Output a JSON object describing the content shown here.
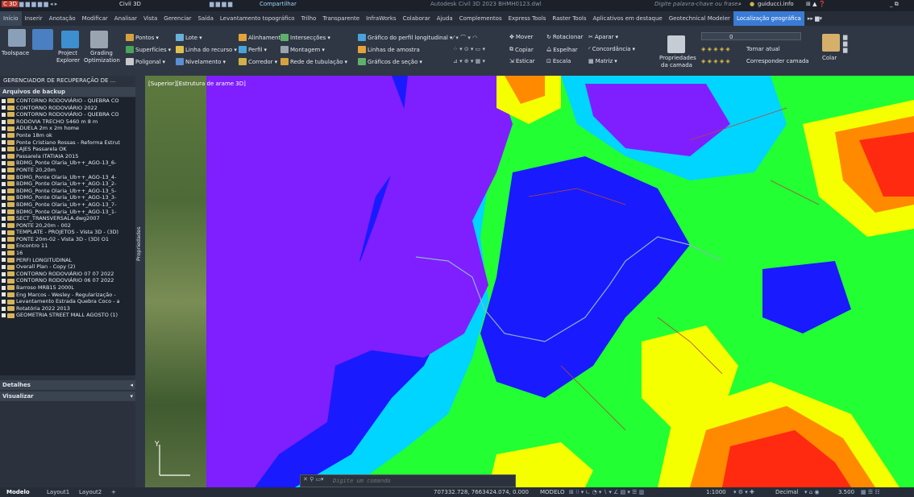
{
  "titlebar": {
    "app_badge": "C 3D",
    "file_menu": "Civil 3D",
    "share": "Compartilhar",
    "window_title": "Autodesk Civil 3D 2023   BHMH0123.dwl",
    "search_placeholder": "Digite palavra-chave ou frase",
    "user": "guiducci.info",
    "window_controls": "_ ⧉"
  },
  "tabs": [
    "Início",
    "Inserir",
    "Anotação",
    "Modificar",
    "Analisar",
    "Vista",
    "Gerenciar",
    "Saída",
    "Levantamento topográfico",
    "Trilho",
    "Transparente",
    "InfraWorks",
    "Colaborar",
    "Ajuda",
    "Complementos",
    "Express Tools",
    "Raster Tools",
    "Aplicativos em destaque",
    "Geotechnical Modeler",
    "Localização geográfica"
  ],
  "active_tab": "Localização geográfica",
  "ribbon": {
    "toolspace": "Toolspace",
    "project_explorer": [
      "Project",
      "Explorer"
    ],
    "grading_optimization": [
      "Grading",
      "Optimization"
    ],
    "col1": [
      "Pontos",
      "Superfícies",
      "Poligonal"
    ],
    "col2": [
      "Lote",
      "Linha do recurso",
      "Nivelamento"
    ],
    "col3": [
      "Alinhamento",
      "Perfil",
      "Corredor"
    ],
    "col4": [
      "Intersecções",
      "Montagem",
      "Rede de tubulação"
    ],
    "col5": [
      "Gráfico do perfil longitudinal",
      "Linhas de amostra",
      "Gráficos de seção"
    ],
    "modify": [
      "Mover",
      "Copiar",
      "Esticar",
      "Rotacionar",
      "Espelhar",
      "Escala",
      "Aparar",
      "Concordância",
      "Matriz"
    ],
    "layer_props": [
      "Propriedades",
      "da camada"
    ],
    "layer_value": "0",
    "tornar_atual": "Tornar atual",
    "corresponder": "Corresponder camada",
    "colar": "Colar"
  },
  "left_panel": {
    "title": "GERENCIADOR DE RECUPERAÇÃO DE ...",
    "section": "Arquivos de backup",
    "items": [
      "CONTORNO RODOVIÁRIO - QUEBRA CO",
      "CONTORNO RODOVIÁRIO 2022",
      "CONTORNO RODOVIÁRIO - QUEBRA CO",
      "RODOVIA TRECHO 5460 m 8 m",
      "ADUELA 2m x 2m home",
      "Ponte 18m ok",
      "Ponte Cristiano Rossas - Reforma Estrut",
      "LAJES Passarela OK",
      "Passarela ITATIAIA 2015",
      "BDMG_Ponte Olaria_Ub++_AGO-13_6-",
      "PONTE 20,20m",
      "BDMG_Ponte Olaria_Ub++_AGO-13_4-",
      "BDMG_Ponte Olaria_Ub++_AGO-13_2-",
      "BDMG_Ponte Olaria_Ub++_AGO-13_5-",
      "BDMG_Ponte Olaria_Ub++_AGO-13_3-",
      "BDMG_Ponte Olaria_Ub++_AGO-13_7-",
      "BDMG_Ponte Olaria_Ub++_AGO-13_1-",
      "SECT_TRANSVERSALA.dwg2007",
      "PONTE 20,20m - 002",
      "TEMPLATE - PROJETOS - Vista 3D - (3D)",
      "PONTE 20m-02 - Vista 3D - (3D) O1",
      "Encontro 11",
      "16",
      "PERFI LONGITUDINAL",
      "Overall Plan - Copy (2)",
      "CONTORNO RODOVIÁRIO 07 07 2022",
      "CONTORNO RODOVIÁRIO 06 07 2022",
      "Barroso MRB15 2000L",
      "Eng Marcos - Wesley - Regularização -",
      "Levantamento Estrada Quebra Coco - a",
      "Rotatória 2022 2013",
      "GEOMETRIA STREET MALL AGOSTO (1)"
    ],
    "detalhes": "Detalhes",
    "visualizar": "Visualizar",
    "side_strip": "Propriedades"
  },
  "viewport": {
    "label": "[Superior][Estrutura de arame 3D]",
    "ucs_y": "Y"
  },
  "command": {
    "placeholder": "Digite um comando"
  },
  "status": {
    "layout_tabs": [
      "Modelo",
      "Layout1",
      "Layout2"
    ],
    "coords": "707332.728, 7663424.074, 0.000",
    "model": "MODELO",
    "scale": "1:1000",
    "units": "Decimal",
    "value": "3.500"
  },
  "colors": {
    "accent": "#3a7bd5",
    "heat_purple": "#7f1fff",
    "heat_blue": "#1a1aff",
    "heat_cyan": "#00d5ff",
    "heat_green": "#22ff33",
    "heat_yellow": "#f5ff00",
    "heat_orange": "#ff8a00",
    "heat_red": "#ff2a10"
  }
}
